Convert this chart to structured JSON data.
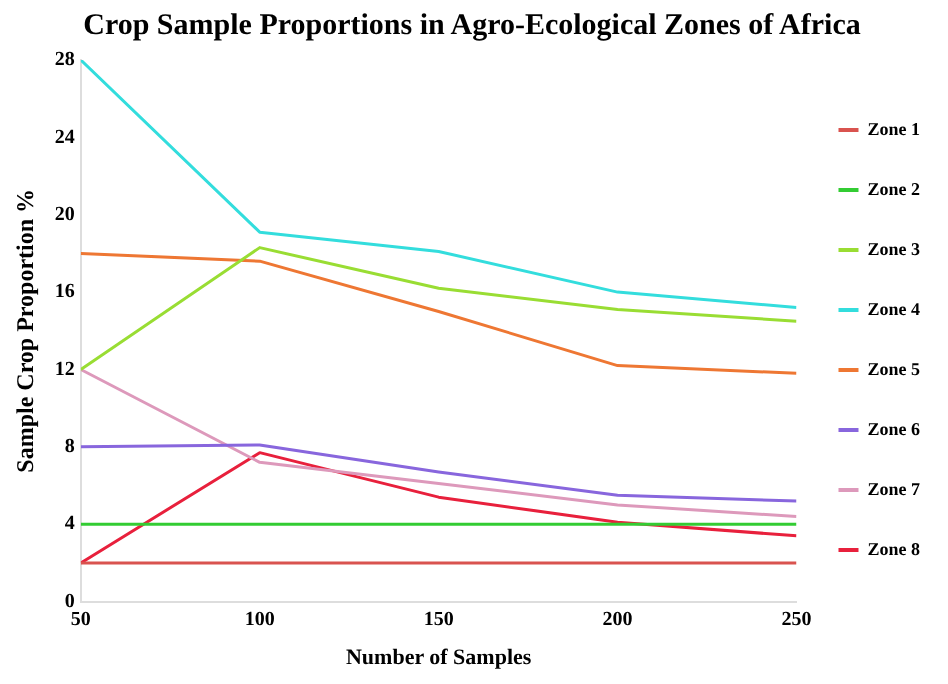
{
  "chart_data": {
    "type": "line",
    "title": "Crop Sample Proportions in Agro-Ecological Zones of Africa",
    "xlabel": "Number of Samples",
    "ylabel": "Sample Crop Proportion %",
    "x": [
      50,
      100,
      150,
      200,
      250
    ],
    "xlim": [
      50,
      250
    ],
    "xticks": [
      50,
      100,
      150,
      200,
      250
    ],
    "ylim": [
      0,
      28
    ],
    "yticks": [
      0,
      4,
      8,
      12,
      16,
      20,
      24,
      28
    ],
    "grid": false,
    "legend": "right",
    "marker": "none",
    "line_style": "solid",
    "series": [
      {
        "name": "Zone 1",
        "color": "#d9534f",
        "values": [
          2,
          2,
          2,
          2,
          2
        ]
      },
      {
        "name": "Zone 2",
        "color": "#33cc33",
        "values": [
          4,
          4,
          4,
          4,
          4
        ]
      },
      {
        "name": "Zone 3",
        "color": "#99dd33",
        "values": [
          12,
          18.3,
          16.2,
          15.1,
          14.5
        ]
      },
      {
        "name": "Zone 4",
        "color": "#33dddd",
        "values": [
          28,
          19.1,
          18.1,
          16,
          15.2
        ]
      },
      {
        "name": "Zone 5",
        "color": "#ee7733",
        "values": [
          18,
          17.6,
          15,
          12.2,
          11.8
        ]
      },
      {
        "name": "Zone 6",
        "color": "#8866dd",
        "values": [
          8,
          8.1,
          6.7,
          5.5,
          5.2
        ]
      },
      {
        "name": "Zone 7",
        "color": "#dd99bb",
        "values": [
          12,
          7.2,
          6.1,
          5,
          4.4
        ]
      },
      {
        "name": "Zone 8",
        "color": "#e8203c",
        "values": [
          2,
          7.7,
          5.4,
          4.1,
          3.4
        ]
      }
    ]
  }
}
